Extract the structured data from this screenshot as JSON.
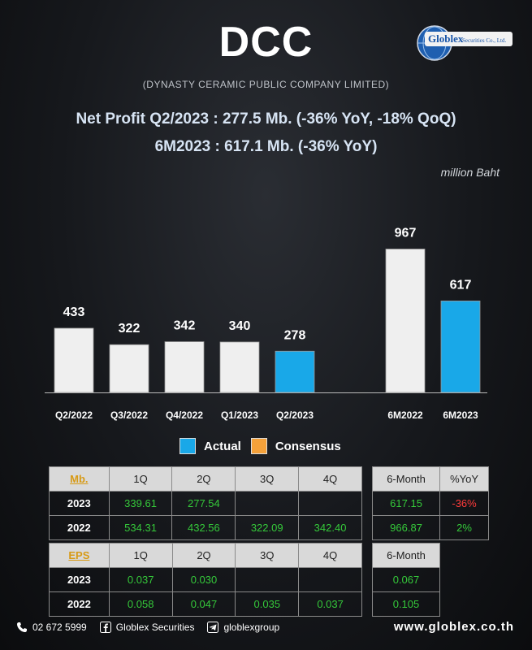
{
  "header": {
    "title": "DCC",
    "subtitle": "(DYNASTY CERAMIC PUBLIC COMPANY LIMITED)",
    "headline1": "Net Profit  Q2/2023 : 277.5 Mb. (-36% YoY, -18% QoQ)",
    "headline2": "6M2023 : 617.1 Mb. (-36% YoY)",
    "unit": "million Baht"
  },
  "logo": {
    "line1": "Globlex",
    "line2": "Securities Co., Ltd."
  },
  "colors": {
    "actual": "#19a8e8",
    "consensus": "#f4a13a",
    "bar_gray": "#efefef"
  },
  "legend": {
    "actual": "Actual",
    "consensus": "Consensus"
  },
  "chart_data": {
    "type": "bar",
    "categories": [
      "Q2/2022",
      "Q3/2022",
      "Q4/2022",
      "Q1/2023",
      "Q2/2023",
      "",
      "6M2022",
      "6M2023"
    ],
    "values": [
      433,
      322,
      342,
      340,
      278,
      null,
      967,
      617
    ],
    "ylim": [
      0,
      1000
    ],
    "highlight": [
      "Q2/2023",
      "6M2023"
    ],
    "xlabel": "",
    "ylabel": ""
  },
  "table_profit": {
    "header": [
      "Mb.",
      "1Q",
      "2Q",
      "3Q",
      "4Q"
    ],
    "rows": [
      {
        "year": "2023",
        "values": [
          "339.61",
          "277.54",
          "",
          ""
        ]
      },
      {
        "year": "2022",
        "values": [
          "534.31",
          "432.56",
          "322.09",
          "342.40"
        ]
      }
    ]
  },
  "table_profit_6m": {
    "header": [
      "6-Month",
      "%YoY"
    ],
    "rows": [
      {
        "values": [
          "617.15",
          "-36%"
        ]
      },
      {
        "values": [
          "966.87",
          "2%"
        ]
      }
    ]
  },
  "table_eps": {
    "header": [
      "EPS",
      "1Q",
      "2Q",
      "3Q",
      "4Q"
    ],
    "rows": [
      {
        "year": "2023",
        "values": [
          "0.037",
          "0.030",
          "",
          ""
        ]
      },
      {
        "year": "2022",
        "values": [
          "0.058",
          "0.047",
          "0.035",
          "0.037"
        ]
      }
    ]
  },
  "table_eps_6m": {
    "header": [
      "6-Month"
    ],
    "rows": [
      {
        "values": [
          "0.067"
        ]
      },
      {
        "values": [
          "0.105"
        ]
      }
    ]
  },
  "footer": {
    "phone": "02 672 5999",
    "facebook": "Globlex Securities",
    "telegram": "globlexgroup",
    "website": "www.globlex.co.th"
  }
}
